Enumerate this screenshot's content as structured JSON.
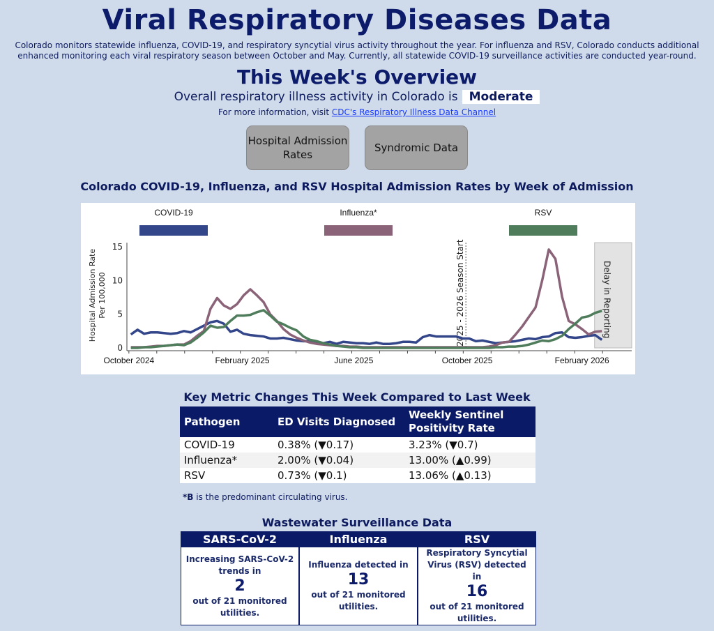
{
  "header": {
    "title": "Viral Respiratory Diseases Data",
    "intro": "Colorado monitors statewide influenza, COVID-19, and respiratory syncytial virus activity throughout the year. For influenza and RSV, Colorado conducts additional enhanced monitoring each viral respiratory season between October and May. Currently, all statewide COVID-19 surveillance activities are conducted year-round."
  },
  "overview": {
    "title": "This Week's Overview",
    "activity_prefix": "Overall respiratory illness activity in Colorado is",
    "activity_level": "Moderate",
    "more_prefix": "For more information, visit",
    "more_link": "CDC's Respiratory Illness Data Channel"
  },
  "buttons": {
    "hospital": "Hospital Admission Rates",
    "syndromic": "Syndromic Data"
  },
  "chart_data": {
    "type": "line",
    "title": "Colorado COVID-19, Influenza, and RSV Hospital Admission Rates by Week of Admission",
    "ylabel": "Hospital Admission Rate Per 100,000",
    "ylim": [
      0,
      15
    ],
    "yticks": [
      0,
      5,
      10,
      15
    ],
    "xticks": [
      {
        "label": "October 2024",
        "week": -0.3
      },
      {
        "label": "February 2025",
        "week": 16.8
      },
      {
        "label": "June 2025",
        "week": 33.6
      },
      {
        "label": "October 2025",
        "week": 50.7
      },
      {
        "label": "February 2026",
        "week": 68
      }
    ],
    "xlim": [
      -0.6,
      75.5
    ],
    "season_start": {
      "label": "2025 - 2026 Season Start",
      "week": 50.5
    },
    "delay": {
      "label": "Delay in Reporting",
      "from_week": 69.9
    },
    "legend": "top",
    "series": [
      {
        "name": "COVID-19",
        "color": "#34468a",
        "values": [
          2.0,
          2.7,
          2.1,
          2.3,
          2.3,
          2.2,
          2.1,
          2.2,
          2.5,
          2.3,
          2.8,
          3.3,
          3.8,
          4.0,
          3.6,
          2.4,
          2.7,
          2.1,
          1.9,
          1.8,
          1.7,
          1.4,
          1.4,
          1.5,
          1.3,
          1.1,
          1.0,
          1.0,
          0.8,
          0.7,
          0.9,
          0.6,
          0.9,
          0.8,
          0.7,
          0.7,
          0.6,
          0.8,
          0.6,
          0.6,
          0.7,
          0.9,
          0.9,
          0.8,
          1.6,
          1.9,
          1.7,
          1.7,
          1.7,
          1.7,
          1.4,
          1.4,
          1.0,
          1.1,
          0.9,
          0.7,
          0.8,
          0.9,
          1.0,
          1.2,
          1.4,
          1.3,
          1.6,
          1.7,
          2.2,
          2.3,
          1.6,
          1.5,
          1.6,
          1.8,
          1.9,
          1.2
        ]
      },
      {
        "name": "Influenza*",
        "color": "#8a6378",
        "values": [
          0.1,
          0.1,
          0.1,
          0.2,
          0.3,
          0.3,
          0.4,
          0.5,
          0.5,
          1.0,
          1.8,
          2.5,
          5.8,
          7.4,
          6.3,
          5.8,
          6.5,
          7.8,
          8.7,
          7.8,
          6.8,
          5.0,
          4.0,
          2.8,
          2.0,
          1.5,
          1.1,
          0.8,
          0.6,
          0.5,
          0.4,
          0.3,
          0.3,
          0.2,
          0.2,
          0.1,
          0.1,
          0.1,
          0.1,
          0.1,
          0.1,
          0.1,
          0.1,
          0.1,
          0.1,
          0.1,
          0.1,
          0.1,
          0.1,
          0.1,
          0.1,
          0.1,
          0.1,
          0.1,
          0.2,
          0.4,
          0.8,
          0.9,
          2.0,
          3.2,
          4.6,
          6.0,
          10.0,
          14.6,
          13.2,
          7.6,
          4.0,
          3.5,
          2.8,
          2.0,
          2.4,
          2.5
        ]
      },
      {
        "name": "RSV",
        "color": "#4f7d5c",
        "values": [
          0.0,
          0.0,
          0.1,
          0.1,
          0.2,
          0.3,
          0.4,
          0.5,
          0.4,
          0.8,
          1.5,
          2.3,
          3.3,
          3.0,
          3.1,
          4.0,
          4.8,
          4.8,
          4.9,
          5.3,
          5.6,
          4.8,
          3.9,
          3.5,
          3.0,
          2.6,
          1.7,
          1.2,
          1.0,
          0.7,
          0.5,
          0.3,
          0.2,
          0.1,
          0.1,
          0.0,
          0.0,
          0.0,
          0.0,
          0.0,
          0.0,
          0.0,
          0.0,
          0.0,
          0.0,
          0.0,
          0.0,
          0.0,
          0.0,
          0.0,
          0.0,
          0.0,
          0.0,
          0.0,
          0.0,
          0.1,
          0.1,
          0.2,
          0.2,
          0.3,
          0.5,
          0.8,
          1.1,
          1.0,
          1.3,
          1.8,
          2.8,
          3.6,
          4.5,
          4.7,
          5.2,
          5.5
        ]
      }
    ]
  },
  "metrics": {
    "title": "Key Metric Changes This Week Compared to Last Week",
    "headers": [
      "Pathogen",
      "ED Visits Diagnosed",
      "Weekly Sentinel Positivity Rate"
    ],
    "rows": [
      [
        "COVID-19",
        "0.38% (▼0.17)",
        "3.23% (▼0.7)"
      ],
      [
        "Influenza*",
        "2.00% (▼0.04)",
        "13.00% (▲0.99)"
      ],
      [
        "RSV",
        "0.73% (▼0.1)",
        "13.06% (▲0.13)"
      ]
    ],
    "note_bold": "*B",
    "note_rest": " is the predominant circulating virus."
  },
  "wastewater": {
    "title": "Wastewater Surveillance Data",
    "cols": [
      {
        "head": "SARS-CoV-2",
        "pre": "Increasing SARS-CoV-2 trends in",
        "num": "2",
        "post": "out of 21 monitored utilities."
      },
      {
        "head": "Influenza",
        "pre": "Influenza detected in",
        "num": "13",
        "post": "out of 21 monitored utilities."
      },
      {
        "head": "RSV",
        "pre": "Respiratory Syncytial Virus (RSV) detected in",
        "num": "16",
        "post": "out of 21 monitored utilities."
      }
    ]
  }
}
